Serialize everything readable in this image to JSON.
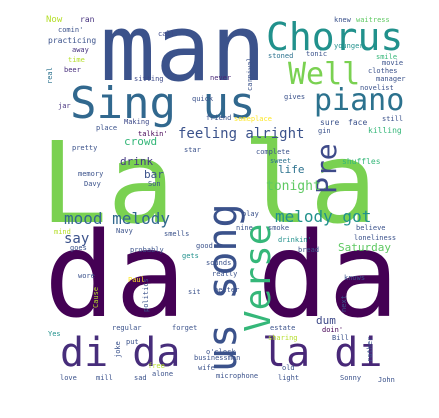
{
  "words": [
    {
      "text": "La la",
      "color": "#7ad151"
    },
    {
      "text": "da da",
      "color": "#440154"
    },
    {
      "text": "man",
      "color": "#3b528b"
    },
    {
      "text": "Sing us",
      "color": "#31688e"
    },
    {
      "text": "Chorus",
      "color": "#21918c"
    },
    {
      "text": "piano",
      "color": "#2c728e"
    },
    {
      "text": "Well",
      "color": "#7ad151"
    },
    {
      "text": "us song",
      "color": "#3b528b"
    },
    {
      "text": "Verse",
      "color": "#35b779"
    },
    {
      "text": "di da",
      "color": "#472d7b"
    },
    {
      "text": "la di",
      "color": "#482878"
    },
    {
      "text": "Pre",
      "color": "#3e4a89"
    },
    {
      "text": "mood melody",
      "color": "#31688e"
    },
    {
      "text": "melody got",
      "color": "#21918c"
    },
    {
      "text": "feeling alright",
      "color": "#3b528b"
    },
    {
      "text": "tonight",
      "color": "#5ec962"
    },
    {
      "text": "say",
      "color": "#3b528b"
    },
    {
      "text": "Saturday",
      "color": "#5ec962"
    },
    {
      "text": "life",
      "color": "#2c728e"
    },
    {
      "text": "drink",
      "color": "#443983"
    },
    {
      "text": "crowd",
      "color": "#35b779"
    },
    {
      "text": "bar",
      "color": "#3b528b"
    },
    {
      "text": "dum",
      "color": "#3e4a89"
    },
    {
      "text": "Now",
      "color": "#b5de2b"
    },
    {
      "text": "ran",
      "color": "#46327e"
    },
    {
      "text": "knew",
      "color": "#3b528b"
    },
    {
      "text": "waitress",
      "color": "#5ec962"
    },
    {
      "text": "comin'",
      "color": "#3b528b"
    },
    {
      "text": "practicing",
      "color": "#3b528b"
    },
    {
      "text": "call",
      "color": "#3e4a89"
    },
    {
      "text": "away",
      "color": "#46327e"
    },
    {
      "text": "time",
      "color": "#b5de2b"
    },
    {
      "text": "beer",
      "color": "#472d7b"
    },
    {
      "text": "stoned",
      "color": "#2c728e"
    },
    {
      "text": "tonic",
      "color": "#3b528b"
    },
    {
      "text": "younger",
      "color": "#21918c"
    },
    {
      "text": "smile",
      "color": "#35b779"
    },
    {
      "text": "movie",
      "color": "#3b528b"
    },
    {
      "text": "clothes",
      "color": "#3b528b"
    },
    {
      "text": "manager",
      "color": "#3b528b"
    },
    {
      "text": "novelist",
      "color": "#3b528b"
    },
    {
      "text": "real",
      "color": "#2c728e"
    },
    {
      "text": "sitting",
      "color": "#3e4a89"
    },
    {
      "text": "never",
      "color": "#482878"
    },
    {
      "text": "carnival",
      "color": "#3b528b"
    },
    {
      "text": "gives",
      "color": "#3b528b"
    },
    {
      "text": "jar",
      "color": "#46327e"
    },
    {
      "text": "quick",
      "color": "#3b528b"
    },
    {
      "text": "friend",
      "color": "#3b528b"
    },
    {
      "text": "someplace",
      "color": "#fde725"
    },
    {
      "text": "gin",
      "color": "#3b528b"
    },
    {
      "text": "still",
      "color": "#3b528b"
    },
    {
      "text": "killing",
      "color": "#35b779"
    },
    {
      "text": "place",
      "color": "#3b528b"
    },
    {
      "text": "Making",
      "color": "#3e4a89"
    },
    {
      "text": "talkin'",
      "color": "#440154"
    },
    {
      "text": "sure",
      "color": "#3b528b"
    },
    {
      "text": "face",
      "color": "#3b528b"
    },
    {
      "text": "pretty",
      "color": "#3b528b"
    },
    {
      "text": "star",
      "color": "#3b528b"
    },
    {
      "text": "complete",
      "color": "#3b528b"
    },
    {
      "text": "sweet",
      "color": "#2c728e"
    },
    {
      "text": "shuffles",
      "color": "#35b779"
    },
    {
      "text": "memory",
      "color": "#3b528b"
    },
    {
      "text": "Davy",
      "color": "#3b528b"
    },
    {
      "text": "Son",
      "color": "#3b528b"
    },
    {
      "text": "play",
      "color": "#3b528b"
    },
    {
      "text": "mind",
      "color": "#b5de2b"
    },
    {
      "text": "Navy",
      "color": "#3b528b"
    },
    {
      "text": "nine",
      "color": "#3b528b"
    },
    {
      "text": "smoke",
      "color": "#3b528b"
    },
    {
      "text": "believe",
      "color": "#3b528b"
    },
    {
      "text": "drinkin'",
      "color": "#21918c"
    },
    {
      "text": "loneliness",
      "color": "#3b528b"
    },
    {
      "text": "goes",
      "color": "#3b528b"
    },
    {
      "text": "probably",
      "color": "#3b528b"
    },
    {
      "text": "smells",
      "color": "#3b528b"
    },
    {
      "text": "gets",
      "color": "#21918c"
    },
    {
      "text": "sounds",
      "color": "#3b528b"
    },
    {
      "text": "bread",
      "color": "#3b528b"
    },
    {
      "text": "good",
      "color": "#3b528b"
    },
    {
      "text": "really",
      "color": "#3b528b"
    },
    {
      "text": "wore",
      "color": "#3b528b"
    },
    {
      "text": "Paul",
      "color": "#fde725"
    },
    {
      "text": "knows",
      "color": "#3b528b"
    },
    {
      "text": "Cause",
      "color": "#b5de2b"
    },
    {
      "text": "politics",
      "color": "#3b528b"
    },
    {
      "text": "sit",
      "color": "#3b528b"
    },
    {
      "text": "better",
      "color": "#3b528b"
    },
    {
      "text": "next",
      "color": "#3b528b"
    },
    {
      "text": "estate",
      "color": "#3b528b"
    },
    {
      "text": "doin'",
      "color": "#440154"
    },
    {
      "text": "regular",
      "color": "#3b528b"
    },
    {
      "text": "forget",
      "color": "#3b528b"
    },
    {
      "text": "sharing",
      "color": "#b5de2b"
    },
    {
      "text": "Yes",
      "color": "#21918c"
    },
    {
      "text": "joke",
      "color": "#3b528b"
    },
    {
      "text": "put",
      "color": "#3b528b"
    },
    {
      "text": "o'clock",
      "color": "#3b528b"
    },
    {
      "text": "Bill",
      "color": "#3b528b"
    },
    {
      "text": "rather",
      "color": "#3b528b"
    },
    {
      "text": "businessmen",
      "color": "#3b528b"
    },
    {
      "text": "free",
      "color": "#b5de2b"
    },
    {
      "text": "old",
      "color": "#3b528b"
    },
    {
      "text": "love",
      "color": "#3b528b"
    },
    {
      "text": "mill",
      "color": "#3b528b"
    },
    {
      "text": "sad",
      "color": "#3b528b"
    },
    {
      "text": "alone",
      "color": "#3b528b"
    },
    {
      "text": "wife",
      "color": "#3b528b"
    },
    {
      "text": "microphone",
      "color": "#3b528b"
    },
    {
      "text": "light",
      "color": "#3b528b"
    },
    {
      "text": "John",
      "color": "#3b528b"
    },
    {
      "text": "Sonny",
      "color": "#3b528b"
    }
  ]
}
